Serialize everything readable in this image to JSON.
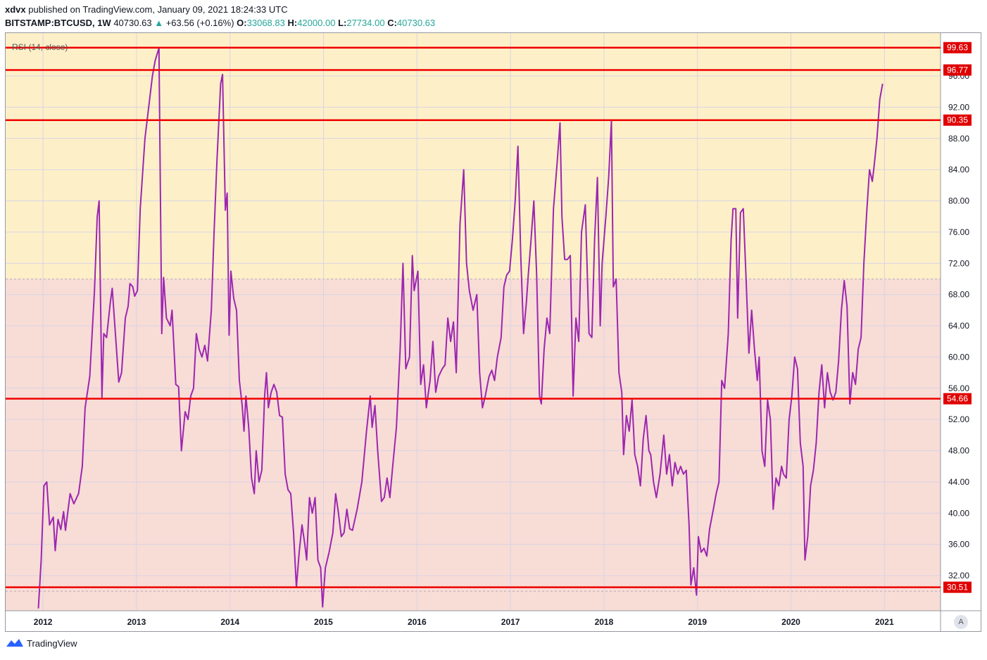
{
  "header": {
    "author": "xdvx",
    "published_text": "published on TradingView.com, January 09, 2021 18:24:33 UTC",
    "symbol": "BITSTAMP:BTCUSD, 1W",
    "last": "40730.63",
    "change": "+63.56 (+0.16%)",
    "open_label": "O:",
    "open": "33068.83",
    "high_label": "H:",
    "high": "42000.00",
    "low_label": "L:",
    "low": "27734.00",
    "close_label": "C:",
    "close": "40730.63"
  },
  "footer": {
    "brand": "TradingView",
    "auto_label": "A"
  },
  "colors": {
    "upper_zone": "#fdf0c8",
    "lower_zone": "#f8dcd6",
    "rsi_line": "#9c27b0",
    "hline": "#f00000",
    "label_bg": "#e00000",
    "grid": "#d9d4e4"
  },
  "chart_data": {
    "type": "line",
    "title": "RSI (14, close)",
    "series": [
      {
        "name": "RSI (14, close)"
      }
    ],
    "y_ticks": [
      32,
      36,
      40,
      44,
      48,
      52,
      56,
      60,
      64,
      68,
      72,
      76,
      80,
      84,
      88,
      92,
      96
    ],
    "y_ticks_text": [
      "32.00",
      "36.00",
      "40.00",
      "44.00",
      "48.00",
      "52.00",
      "56.00",
      "60.00",
      "64.00",
      "68.00",
      "72.00",
      "76.00",
      "80.00",
      "84.00",
      "88.00",
      "92.00",
      "96.00"
    ],
    "ylim": [
      27.5,
      101.5
    ],
    "x_ticks": [
      "2012",
      "2013",
      "2014",
      "2015",
      "2016",
      "2017",
      "2018",
      "2019",
      "2020",
      "2021"
    ],
    "xlim": [
      2011.6,
      2021.6
    ],
    "zones": {
      "split": 70
    },
    "hlines": [
      {
        "value": 99.63,
        "label": "99.63"
      },
      {
        "value": 96.77,
        "label": "96.77"
      },
      {
        "value": 90.35,
        "label": "90.35"
      },
      {
        "value": 54.66,
        "label": "54.66"
      },
      {
        "value": 30.51,
        "label": "30.51"
      }
    ],
    "points": [
      [
        2011.95,
        27.8
      ],
      [
        2011.98,
        34
      ],
      [
        2012.01,
        43.5
      ],
      [
        2012.04,
        44
      ],
      [
        2012.07,
        38.5
      ],
      [
        2012.11,
        39.5
      ],
      [
        2012.13,
        35.2
      ],
      [
        2012.16,
        39.2
      ],
      [
        2012.19,
        37.9
      ],
      [
        2012.22,
        40.2
      ],
      [
        2012.24,
        37.8
      ],
      [
        2012.29,
        42.5
      ],
      [
        2012.33,
        41.2
      ],
      [
        2012.38,
        42.5
      ],
      [
        2012.42,
        46
      ],
      [
        2012.45,
        53.5
      ],
      [
        2012.5,
        57.5
      ],
      [
        2012.55,
        68.5
      ],
      [
        2012.58,
        78
      ],
      [
        2012.6,
        80
      ],
      [
        2012.63,
        54.8
      ],
      [
        2012.65,
        63
      ],
      [
        2012.68,
        62.5
      ],
      [
        2012.72,
        67
      ],
      [
        2012.74,
        68.8
      ],
      [
        2012.78,
        62
      ],
      [
        2012.81,
        56.8
      ],
      [
        2012.84,
        58
      ],
      [
        2012.88,
        65
      ],
      [
        2012.91,
        66.5
      ],
      [
        2012.93,
        69.4
      ],
      [
        2012.96,
        69
      ],
      [
        2012.98,
        67.8
      ],
      [
        2013.01,
        68.5
      ],
      [
        2013.04,
        79
      ],
      [
        2013.09,
        88
      ],
      [
        2013.13,
        92
      ],
      [
        2013.17,
        96
      ],
      [
        2013.2,
        98
      ],
      [
        2013.24,
        99.6
      ],
      [
        2013.27,
        63
      ],
      [
        2013.29,
        70.2
      ],
      [
        2013.32,
        65
      ],
      [
        2013.36,
        64
      ],
      [
        2013.38,
        66
      ],
      [
        2013.42,
        56.5
      ],
      [
        2013.45,
        56.2
      ],
      [
        2013.48,
        48
      ],
      [
        2013.52,
        53
      ],
      [
        2013.55,
        52
      ],
      [
        2013.58,
        55
      ],
      [
        2013.61,
        56
      ],
      [
        2013.64,
        63
      ],
      [
        2013.67,
        61
      ],
      [
        2013.7,
        60
      ],
      [
        2013.73,
        61.5
      ],
      [
        2013.76,
        59.5
      ],
      [
        2013.8,
        66
      ],
      [
        2013.83,
        76
      ],
      [
        2013.86,
        85
      ],
      [
        2013.9,
        95
      ],
      [
        2013.92,
        96.2
      ],
      [
        2013.95,
        78.8
      ],
      [
        2013.97,
        81
      ],
      [
        2013.99,
        62.8
      ],
      [
        2014.01,
        71
      ],
      [
        2014.04,
        67.5
      ],
      [
        2014.07,
        66
      ],
      [
        2014.1,
        57
      ],
      [
        2014.13,
        53.8
      ],
      [
        2014.15,
        50.5
      ],
      [
        2014.17,
        55
      ],
      [
        2014.2,
        51
      ],
      [
        2014.23,
        44.5
      ],
      [
        2014.26,
        42.5
      ],
      [
        2014.28,
        48
      ],
      [
        2014.31,
        44
      ],
      [
        2014.34,
        45.5
      ],
      [
        2014.37,
        55
      ],
      [
        2014.39,
        58
      ],
      [
        2014.41,
        53.5
      ],
      [
        2014.44,
        55.5
      ],
      [
        2014.47,
        56.5
      ],
      [
        2014.5,
        55.5
      ],
      [
        2014.53,
        52.5
      ],
      [
        2014.56,
        52.3
      ],
      [
        2014.59,
        45
      ],
      [
        2014.62,
        43
      ],
      [
        2014.65,
        42.5
      ],
      [
        2014.68,
        37.5
      ],
      [
        2014.71,
        30.5
      ],
      [
        2014.74,
        35
      ],
      [
        2014.77,
        38.5
      ],
      [
        2014.8,
        36
      ],
      [
        2014.82,
        34
      ],
      [
        2014.85,
        42
      ],
      [
        2014.88,
        40
      ],
      [
        2014.91,
        42
      ],
      [
        2014.94,
        34
      ],
      [
        2014.97,
        33
      ],
      [
        2014.99,
        28
      ],
      [
        2015.02,
        33
      ],
      [
        2015.06,
        35
      ],
      [
        2015.1,
        37.5
      ],
      [
        2015.13,
        42.5
      ],
      [
        2015.16,
        40
      ],
      [
        2015.19,
        37
      ],
      [
        2015.22,
        37.5
      ],
      [
        2015.25,
        40.5
      ],
      [
        2015.28,
        38
      ],
      [
        2015.31,
        37.8
      ],
      [
        2015.36,
        40.5
      ],
      [
        2015.41,
        44
      ],
      [
        2015.46,
        50.5
      ],
      [
        2015.5,
        55
      ],
      [
        2015.52,
        51
      ],
      [
        2015.55,
        53.8
      ],
      [
        2015.58,
        48
      ],
      [
        2015.62,
        41.5
      ],
      [
        2015.65,
        42
      ],
      [
        2015.68,
        44.5
      ],
      [
        2015.71,
        42
      ],
      [
        2015.74,
        46
      ],
      [
        2015.78,
        51
      ],
      [
        2015.82,
        61
      ],
      [
        2015.85,
        72
      ],
      [
        2015.88,
        58.5
      ],
      [
        2015.92,
        60
      ],
      [
        2015.95,
        73
      ],
      [
        2015.97,
        68.5
      ],
      [
        2016.01,
        71
      ],
      [
        2016.04,
        56.5
      ],
      [
        2016.07,
        59
      ],
      [
        2016.1,
        53.5
      ],
      [
        2016.14,
        57
      ],
      [
        2016.17,
        62
      ],
      [
        2016.2,
        55.5
      ],
      [
        2016.23,
        57.5
      ],
      [
        2016.27,
        58.5
      ],
      [
        2016.3,
        59
      ],
      [
        2016.33,
        65
      ],
      [
        2016.36,
        62
      ],
      [
        2016.39,
        64.5
      ],
      [
        2016.42,
        58
      ],
      [
        2016.46,
        77
      ],
      [
        2016.5,
        84
      ],
      [
        2016.53,
        72
      ],
      [
        2016.56,
        68.5
      ],
      [
        2016.6,
        66
      ],
      [
        2016.64,
        68
      ],
      [
        2016.67,
        58
      ],
      [
        2016.7,
        53.5
      ],
      [
        2016.73,
        55
      ],
      [
        2016.77,
        57.5
      ],
      [
        2016.8,
        58.3
      ],
      [
        2016.83,
        57
      ],
      [
        2016.86,
        60
      ],
      [
        2016.9,
        62.5
      ],
      [
        2016.93,
        69
      ],
      [
        2016.96,
        70.5
      ],
      [
        2016.99,
        71
      ],
      [
        2017.02,
        75
      ],
      [
        2017.05,
        80
      ],
      [
        2017.08,
        87
      ],
      [
        2017.11,
        73
      ],
      [
        2017.14,
        63
      ],
      [
        2017.17,
        67
      ],
      [
        2017.19,
        70.5
      ],
      [
        2017.22,
        75
      ],
      [
        2017.25,
        80
      ],
      [
        2017.28,
        70.5
      ],
      [
        2017.31,
        55
      ],
      [
        2017.33,
        54
      ],
      [
        2017.36,
        61
      ],
      [
        2017.39,
        65
      ],
      [
        2017.42,
        63
      ],
      [
        2017.46,
        79
      ],
      [
        2017.5,
        85
      ],
      [
        2017.53,
        90
      ],
      [
        2017.55,
        78
      ],
      [
        2017.58,
        72.5
      ],
      [
        2017.61,
        72.5
      ],
      [
        2017.64,
        73
      ],
      [
        2017.67,
        55
      ],
      [
        2017.7,
        65
      ],
      [
        2017.73,
        62
      ],
      [
        2017.76,
        76
      ],
      [
        2017.8,
        79.5
      ],
      [
        2017.84,
        63
      ],
      [
        2017.87,
        62.5
      ],
      [
        2017.9,
        75
      ],
      [
        2017.93,
        83
      ],
      [
        2017.96,
        64
      ],
      [
        2017.98,
        72
      ],
      [
        2018.02,
        78
      ],
      [
        2018.05,
        83
      ],
      [
        2018.08,
        90.3
      ],
      [
        2018.1,
        69
      ],
      [
        2018.13,
        70
      ],
      [
        2018.16,
        58
      ],
      [
        2018.19,
        55.5
      ],
      [
        2018.21,
        47.5
      ],
      [
        2018.24,
        52.5
      ],
      [
        2018.27,
        50.5
      ],
      [
        2018.3,
        54.5
      ],
      [
        2018.33,
        47.5
      ],
      [
        2018.36,
        46
      ],
      [
        2018.39,
        43.5
      ],
      [
        2018.42,
        49.5
      ],
      [
        2018.45,
        52.5
      ],
      [
        2018.48,
        48
      ],
      [
        2018.5,
        47.5
      ],
      [
        2018.53,
        44
      ],
      [
        2018.56,
        42
      ],
      [
        2018.6,
        45
      ],
      [
        2018.64,
        50
      ],
      [
        2018.67,
        45
      ],
      [
        2018.7,
        47.5
      ],
      [
        2018.73,
        43.5
      ],
      [
        2018.76,
        46.5
      ],
      [
        2018.79,
        45
      ],
      [
        2018.82,
        46
      ],
      [
        2018.85,
        45
      ],
      [
        2018.88,
        45.5
      ],
      [
        2018.91,
        38.5
      ],
      [
        2018.93,
        30.8
      ],
      [
        2018.96,
        33
      ],
      [
        2018.99,
        29.5
      ],
      [
        2019.01,
        37
      ],
      [
        2019.04,
        35
      ],
      [
        2019.07,
        35.5
      ],
      [
        2019.1,
        34.5
      ],
      [
        2019.13,
        38
      ],
      [
        2019.17,
        40.5
      ],
      [
        2019.2,
        42.5
      ],
      [
        2019.23,
        44
      ],
      [
        2019.26,
        57
      ],
      [
        2019.29,
        56
      ],
      [
        2019.33,
        63
      ],
      [
        2019.36,
        75
      ],
      [
        2019.38,
        79
      ],
      [
        2019.41,
        79
      ],
      [
        2019.43,
        65
      ],
      [
        2019.46,
        78.5
      ],
      [
        2019.49,
        79
      ],
      [
        2019.52,
        70
      ],
      [
        2019.55,
        60.5
      ],
      [
        2019.58,
        66
      ],
      [
        2019.61,
        61
      ],
      [
        2019.64,
        57
      ],
      [
        2019.66,
        60
      ],
      [
        2019.69,
        48
      ],
      [
        2019.72,
        46
      ],
      [
        2019.75,
        54.5
      ],
      [
        2019.78,
        52
      ],
      [
        2019.81,
        40.5
      ],
      [
        2019.84,
        44.5
      ],
      [
        2019.87,
        43.5
      ],
      [
        2019.9,
        46
      ],
      [
        2019.92,
        45
      ],
      [
        2019.95,
        44.5
      ],
      [
        2019.98,
        52
      ],
      [
        2020.01,
        55
      ],
      [
        2020.04,
        60
      ],
      [
        2020.07,
        58.5
      ],
      [
        2020.1,
        49
      ],
      [
        2020.13,
        46
      ],
      [
        2020.15,
        34
      ],
      [
        2020.18,
        37
      ],
      [
        2020.21,
        43.5
      ],
      [
        2020.24,
        45.5
      ],
      [
        2020.27,
        49
      ],
      [
        2020.3,
        55.5
      ],
      [
        2020.33,
        59
      ],
      [
        2020.36,
        53.5
      ],
      [
        2020.39,
        58
      ],
      [
        2020.42,
        55.5
      ],
      [
        2020.45,
        54.5
      ],
      [
        2020.48,
        55.5
      ],
      [
        2020.51,
        59.5
      ],
      [
        2020.54,
        66
      ],
      [
        2020.57,
        69.8
      ],
      [
        2020.6,
        66.5
      ],
      [
        2020.63,
        54
      ],
      [
        2020.66,
        58
      ],
      [
        2020.69,
        56.5
      ],
      [
        2020.72,
        61
      ],
      [
        2020.75,
        62.5
      ],
      [
        2020.78,
        72
      ],
      [
        2020.81,
        78.5
      ],
      [
        2020.84,
        84
      ],
      [
        2020.87,
        82.5
      ],
      [
        2020.89,
        84.5
      ],
      [
        2020.92,
        88
      ],
      [
        2020.95,
        93
      ],
      [
        2020.98,
        95
      ]
    ]
  }
}
